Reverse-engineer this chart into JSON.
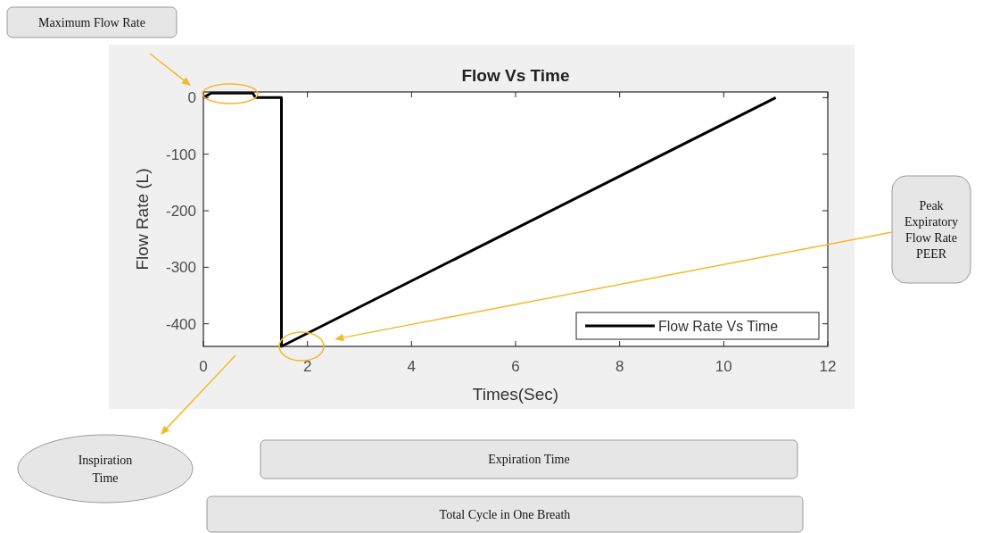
{
  "chart_data": {
    "type": "line",
    "title": "Flow Vs Time",
    "xlabel": "Times(Sec)",
    "ylabel": "Flow Rate (L)",
    "xlim": [
      0,
      12
    ],
    "ylim": [
      -440,
      10
    ],
    "xticks": [
      0,
      2,
      4,
      6,
      8,
      10,
      12
    ],
    "yticks": [
      -400,
      -300,
      -200,
      -100,
      0
    ],
    "legend": "bottom right",
    "grid": false,
    "marker": "none",
    "line_style": "solid",
    "series": [
      {
        "name": "Flow Rate Vs Time",
        "color": "#000000",
        "x": [
          0,
          0.15,
          0.95,
          1.0,
          1.5,
          1.5,
          11
        ],
        "values": [
          0,
          8,
          8,
          0,
          0,
          -440,
          0
        ]
      }
    ],
    "annotations": [
      "Maximum Flow Rate",
      "Peak Expiratory Flow Rate PEER",
      "Inspiration Time",
      "Expiration Time",
      "Total Cycle in One Breath"
    ]
  }
}
